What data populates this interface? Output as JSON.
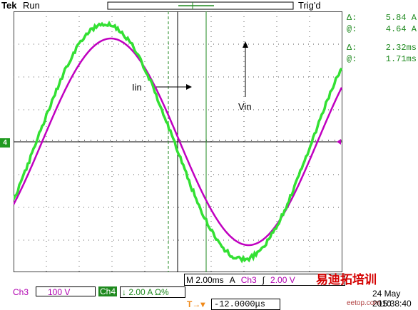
{
  "header": {
    "brand": "Tek",
    "state": "Run",
    "trigger_status": "Trig'd"
  },
  "channel_marker": "4",
  "trigger_marker": "T",
  "readouts": [
    {
      "label": "Δ:",
      "value": "5.84 A"
    },
    {
      "label": "@:",
      "value": "4.64 A"
    },
    {
      "label": "Δ:",
      "value": "2.32ms"
    },
    {
      "label": "@:",
      "value": "1.71ms"
    }
  ],
  "annotations": {
    "iin": "Iin",
    "vin": "Vin"
  },
  "bottom": {
    "timebase": "M 2.00ms",
    "trigger_src": "A",
    "trigger_ch": "Ch3",
    "trigger_slope": "∫",
    "trigger_level": "2.00 V",
    "ch3_label": "Ch3",
    "ch3_scale": "100 V",
    "ch4_label": "Ch4",
    "ch4_scale": "↓ 2.00 A Ω%",
    "offset_marker": "T→▾",
    "offset": "-12.0000μs",
    "date": "24 May 2010",
    "time": "15:38:40"
  },
  "watermark": {
    "cn": "易迪拓培训",
    "url": "eetop.com"
  },
  "colors": {
    "ch3": "#c000c0",
    "ch4": "#22dd22",
    "cursor": "#1f8a1f",
    "grid": "#000000",
    "trigger": "#f08a1a"
  }
}
